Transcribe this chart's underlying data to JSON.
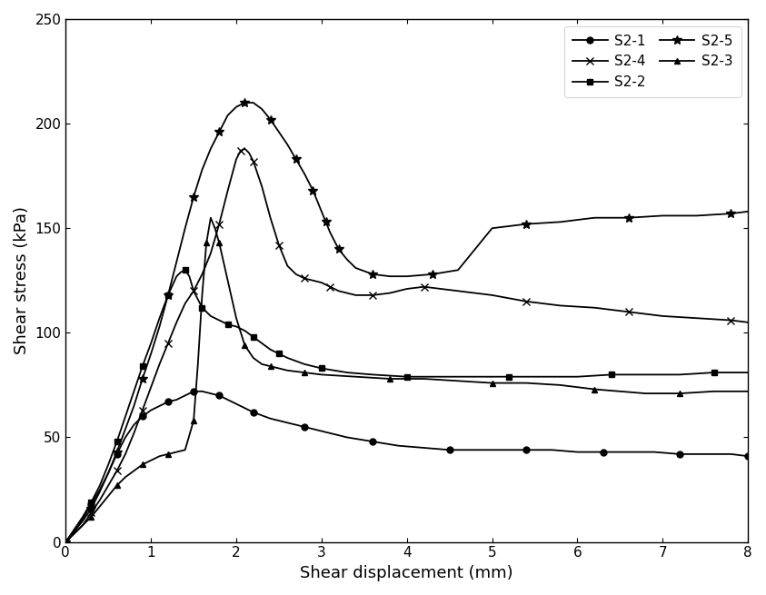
{
  "xlabel": "Shear displacement (mm)",
  "ylabel": "Shear stress (kPa)",
  "xlim": [
    0,
    8
  ],
  "ylim": [
    0,
    250
  ],
  "xticks": [
    0,
    1,
    2,
    3,
    4,
    5,
    6,
    7,
    8
  ],
  "yticks": [
    0,
    50,
    100,
    150,
    200,
    250
  ],
  "background_color": "#ffffff",
  "legend_fontsize": 11,
  "axis_fontsize": 13,
  "tick_fontsize": 11,
  "S2_1_x": [
    0,
    0.1,
    0.2,
    0.3,
    0.4,
    0.5,
    0.6,
    0.7,
    0.8,
    0.9,
    1.0,
    1.1,
    1.2,
    1.3,
    1.4,
    1.5,
    1.6,
    1.7,
    1.8,
    1.9,
    2.0,
    2.2,
    2.4,
    2.6,
    2.8,
    3.0,
    3.3,
    3.6,
    3.9,
    4.2,
    4.5,
    4.8,
    5.1,
    5.4,
    5.7,
    6.0,
    6.3,
    6.6,
    6.9,
    7.2,
    7.5,
    7.8,
    8.0
  ],
  "S2_1_y": [
    0,
    5,
    11,
    18,
    25,
    33,
    42,
    50,
    56,
    60,
    63,
    65,
    67,
    68,
    70,
    72,
    72,
    71,
    70,
    68,
    66,
    62,
    59,
    57,
    55,
    53,
    50,
    48,
    46,
    45,
    44,
    44,
    44,
    44,
    44,
    43,
    43,
    43,
    43,
    42,
    42,
    42,
    41
  ],
  "S2_2_x": [
    0,
    0.1,
    0.2,
    0.3,
    0.4,
    0.5,
    0.6,
    0.7,
    0.8,
    0.9,
    1.0,
    1.1,
    1.2,
    1.3,
    1.35,
    1.4,
    1.45,
    1.5,
    1.6,
    1.7,
    1.8,
    1.9,
    2.0,
    2.1,
    2.2,
    2.3,
    2.4,
    2.5,
    2.6,
    2.8,
    3.0,
    3.3,
    3.6,
    4.0,
    4.4,
    4.8,
    5.2,
    5.6,
    6.0,
    6.4,
    6.8,
    7.2,
    7.6,
    8.0
  ],
  "S2_2_y": [
    0,
    6,
    12,
    19,
    27,
    37,
    48,
    60,
    72,
    84,
    95,
    107,
    118,
    127,
    129,
    130,
    127,
    120,
    112,
    108,
    106,
    104,
    103,
    101,
    98,
    95,
    92,
    90,
    88,
    85,
    83,
    81,
    80,
    79,
    79,
    79,
    79,
    79,
    79,
    80,
    80,
    80,
    81,
    81
  ],
  "S2_3_x": [
    0,
    0.1,
    0.2,
    0.3,
    0.4,
    0.5,
    0.6,
    0.7,
    0.8,
    0.9,
    1.0,
    1.1,
    1.2,
    1.3,
    1.4,
    1.5,
    1.55,
    1.6,
    1.65,
    1.7,
    1.75,
    1.8,
    1.9,
    2.0,
    2.1,
    2.2,
    2.3,
    2.4,
    2.5,
    2.6,
    2.8,
    3.0,
    3.4,
    3.8,
    4.2,
    4.6,
    5.0,
    5.4,
    5.8,
    6.2,
    6.5,
    6.8,
    7.2,
    7.6,
    8.0
  ],
  "S2_3_y": [
    0,
    4,
    8,
    12,
    17,
    22,
    27,
    31,
    34,
    37,
    39,
    41,
    42,
    43,
    44,
    58,
    85,
    118,
    143,
    155,
    150,
    143,
    125,
    107,
    94,
    88,
    85,
    84,
    83,
    82,
    81,
    80,
    79,
    78,
    78,
    77,
    76,
    76,
    75,
    73,
    72,
    71,
    71,
    72,
    72
  ],
  "S2_4_x": [
    0,
    0.1,
    0.2,
    0.3,
    0.4,
    0.5,
    0.6,
    0.7,
    0.8,
    0.9,
    1.0,
    1.1,
    1.2,
    1.3,
    1.4,
    1.5,
    1.6,
    1.7,
    1.8,
    1.9,
    2.0,
    2.05,
    2.1,
    2.15,
    2.2,
    2.3,
    2.4,
    2.5,
    2.6,
    2.7,
    2.8,
    2.9,
    3.0,
    3.1,
    3.2,
    3.4,
    3.6,
    3.8,
    4.0,
    4.2,
    4.6,
    5.0,
    5.4,
    5.8,
    6.2,
    6.6,
    7.0,
    7.4,
    7.8,
    8.0
  ],
  "S2_4_y": [
    0,
    4,
    8,
    14,
    20,
    27,
    34,
    42,
    52,
    63,
    74,
    85,
    95,
    105,
    114,
    120,
    128,
    138,
    152,
    168,
    183,
    187,
    188,
    186,
    182,
    170,
    155,
    142,
    132,
    128,
    126,
    125,
    124,
    122,
    120,
    118,
    118,
    119,
    121,
    122,
    120,
    118,
    115,
    113,
    112,
    110,
    108,
    107,
    106,
    105
  ],
  "S2_5_x": [
    0,
    0.1,
    0.2,
    0.3,
    0.4,
    0.5,
    0.6,
    0.7,
    0.8,
    0.9,
    1.0,
    1.1,
    1.2,
    1.3,
    1.4,
    1.5,
    1.6,
    1.7,
    1.8,
    1.9,
    2.0,
    2.1,
    2.2,
    2.3,
    2.4,
    2.5,
    2.6,
    2.7,
    2.8,
    2.85,
    2.9,
    2.95,
    3.0,
    3.05,
    3.1,
    3.15,
    3.2,
    3.3,
    3.4,
    3.6,
    3.8,
    4.0,
    4.3,
    4.6,
    5.0,
    5.4,
    5.8,
    6.2,
    6.6,
    7.0,
    7.4,
    7.8,
    8.0
  ],
  "S2_5_y": [
    0,
    5,
    10,
    16,
    24,
    33,
    43,
    54,
    65,
    78,
    90,
    103,
    118,
    134,
    150,
    165,
    178,
    188,
    196,
    204,
    208,
    210,
    210,
    207,
    202,
    196,
    190,
    183,
    176,
    172,
    168,
    163,
    158,
    153,
    148,
    144,
    140,
    135,
    131,
    128,
    127,
    127,
    128,
    130,
    150,
    152,
    153,
    155,
    155,
    156,
    156,
    157,
    158
  ]
}
